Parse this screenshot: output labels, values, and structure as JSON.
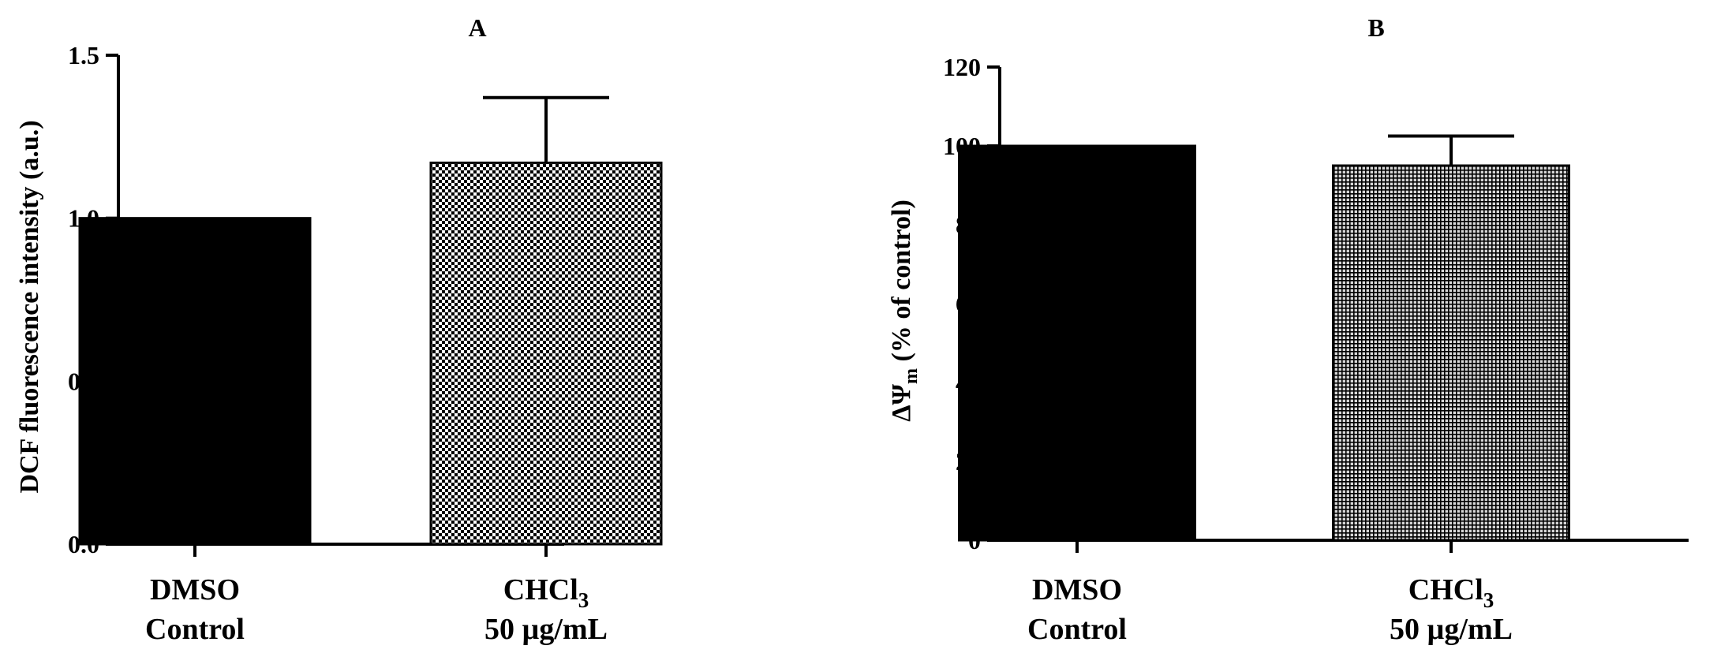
{
  "chart_data": [
    {
      "panel_id": "A",
      "type": "bar",
      "ylabel": "DCF fluorescence intensity (a.u.)",
      "categories": [
        {
          "line1": "DMSO",
          "line2": "Control"
        },
        {
          "line1": "CHCl",
          "sub": "3",
          "line2": "50 µg/mL"
        }
      ],
      "values": [
        1.0,
        1.17
      ],
      "errors": [
        0,
        0.2
      ],
      "ylim": [
        0,
        1.5
      ],
      "yticks": [
        "0.0",
        "0.5",
        "1.0",
        "1.5"
      ],
      "ytick_values": [
        0,
        0.5,
        1.0,
        1.5
      ],
      "bar_fills": [
        "solid",
        "checker"
      ],
      "grid": false,
      "legend": false
    },
    {
      "panel_id": "B",
      "type": "bar",
      "ylabel": "ΔΨm (% of control)",
      "ylabel_parts": {
        "pre": "ΔΨ",
        "sub": "m",
        "post": " (% of control)"
      },
      "categories": [
        {
          "line1": "DMSO",
          "line2": "Control"
        },
        {
          "line1": "CHCl",
          "sub": "3",
          "line2": "50 µg/mL"
        }
      ],
      "values": [
        100,
        95
      ],
      "errors": [
        0,
        7.5
      ],
      "ylim": [
        0,
        120
      ],
      "yticks": [
        "0",
        "20",
        "40",
        "60",
        "80",
        "100",
        "120"
      ],
      "ytick_values": [
        0,
        20,
        40,
        60,
        80,
        100,
        120
      ],
      "bar_fills": [
        "solid",
        "fine-grid"
      ],
      "grid": false,
      "legend": false
    }
  ]
}
